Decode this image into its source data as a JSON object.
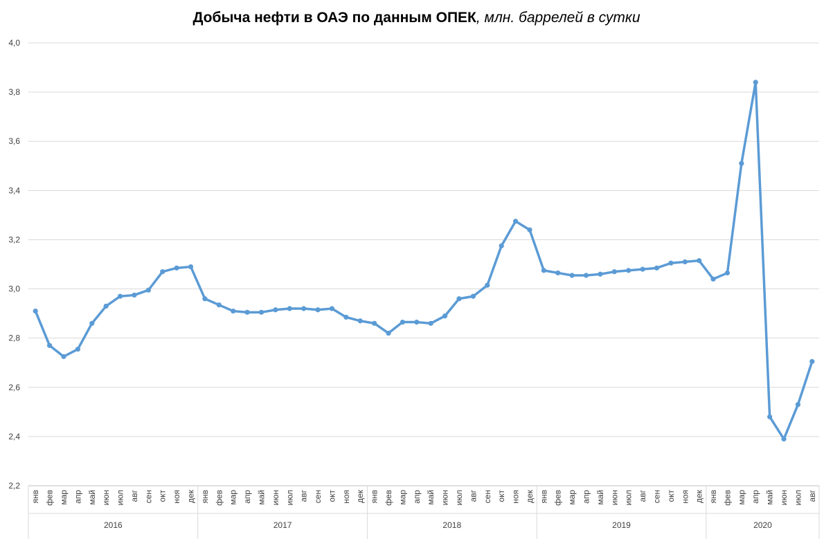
{
  "chart_data": {
    "type": "line",
    "title": "Добыча нефти в ОАЭ по данным ОПЕК",
    "subtitle": ", млн. баррелей в сутки",
    "xlabel": "",
    "ylabel": "",
    "ylim": [
      2.2,
      4.0
    ],
    "yticks": [
      "2,2",
      "2,4",
      "2,6",
      "2,8",
      "3,0",
      "3,2",
      "3,4",
      "3,6",
      "3,8",
      "4,0"
    ],
    "grid": true,
    "legend": "none",
    "line_color": "#5B9BD5",
    "years": [
      {
        "label": "2016",
        "months": [
          "янв",
          "фев",
          "мар",
          "апр",
          "май",
          "июн",
          "июл",
          "авг",
          "сен",
          "окт",
          "ноя",
          "дек"
        ]
      },
      {
        "label": "2017",
        "months": [
          "янв",
          "фев",
          "мар",
          "апр",
          "май",
          "июн",
          "июл",
          "авг",
          "сен",
          "окт",
          "ноя",
          "дек"
        ]
      },
      {
        "label": "2018",
        "months": [
          "янв",
          "фев",
          "мар",
          "апр",
          "май",
          "июн",
          "июл",
          "авг",
          "сен",
          "окт",
          "ноя",
          "дек"
        ]
      },
      {
        "label": "2019",
        "months": [
          "янв",
          "фев",
          "мар",
          "апр",
          "май",
          "июн",
          "июл",
          "авг",
          "сен",
          "окт",
          "ноя",
          "дек"
        ]
      },
      {
        "label": "2020",
        "months": [
          "янв",
          "фев",
          "мар",
          "апр",
          "май",
          "июн",
          "июл",
          "авг"
        ]
      }
    ],
    "series": [
      {
        "values": [
          2.91,
          2.77,
          2.725,
          2.755,
          2.86,
          2.93,
          2.97,
          2.975,
          2.995,
          3.07,
          3.085,
          3.09,
          2.96,
          2.935,
          2.91,
          2.905,
          2.905,
          2.915,
          2.92,
          2.92,
          2.915,
          2.92,
          2.885,
          2.87,
          2.86,
          2.82,
          2.865,
          2.865,
          2.86,
          2.89,
          2.96,
          2.97,
          3.015,
          3.175,
          3.275,
          3.24,
          3.075,
          3.065,
          3.055,
          3.055,
          3.06,
          3.07,
          3.075,
          3.08,
          3.085,
          3.105,
          3.11,
          3.115,
          3.04,
          3.065,
          3.51,
          3.84,
          2.48,
          2.39,
          2.53,
          2.705
        ]
      }
    ]
  }
}
